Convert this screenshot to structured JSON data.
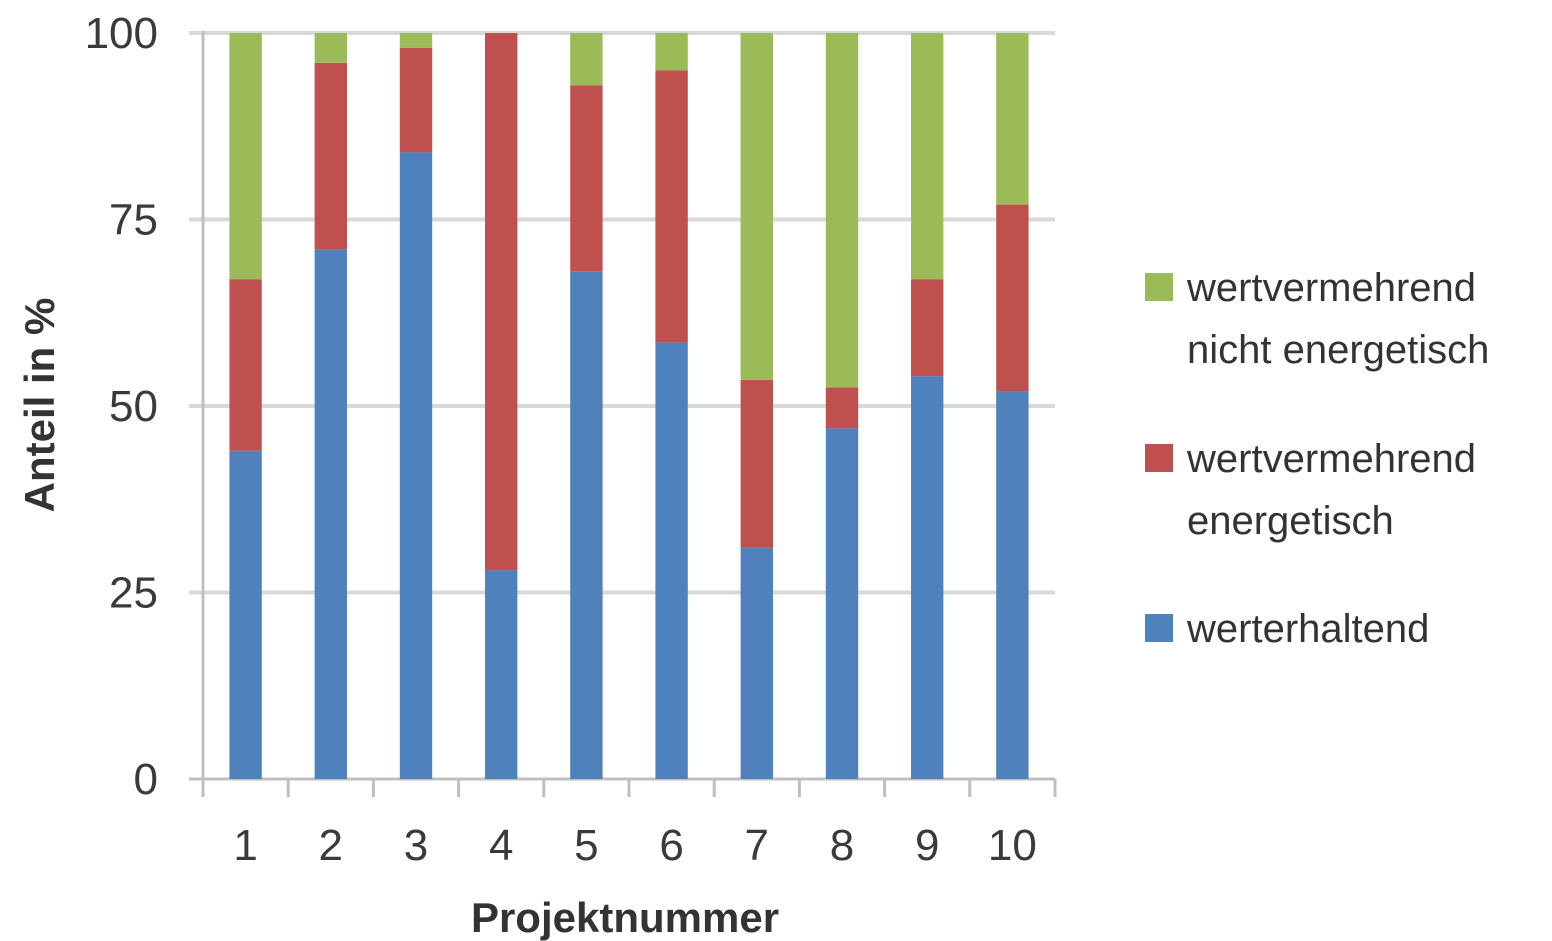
{
  "chart_data": {
    "type": "bar",
    "stacked": true,
    "categories": [
      "1",
      "2",
      "3",
      "4",
      "5",
      "6",
      "7",
      "8",
      "9",
      "10"
    ],
    "series": [
      {
        "name": "werterhaltend",
        "color": "#4f81bd",
        "values": [
          44,
          71,
          84,
          28,
          68,
          58.5,
          31,
          47,
          54,
          52
        ]
      },
      {
        "name": "wertvermehrend energetisch",
        "name_lines": [
          "wertvermehrend",
          "energetisch"
        ],
        "color": "#c0504d",
        "values": [
          23,
          25,
          14,
          72,
          25,
          36.5,
          22.5,
          5.5,
          13,
          25
        ]
      },
      {
        "name": "wertvermehrend nicht energetisch",
        "name_lines": [
          "wertvermehrend",
          "nicht energetisch"
        ],
        "color": "#9bbb59",
        "values": [
          33,
          4,
          2,
          0,
          7,
          5,
          46.5,
          47.5,
          33,
          23
        ]
      }
    ],
    "yticks": [
      "0",
      "25",
      "50",
      "75",
      "100"
    ],
    "ylim": [
      0,
      100
    ],
    "xlabel": "Projektnummer",
    "ylabel": "Anteil in %",
    "grid": true,
    "legend_position": "right",
    "legend_order": [
      2,
      1,
      0
    ]
  }
}
